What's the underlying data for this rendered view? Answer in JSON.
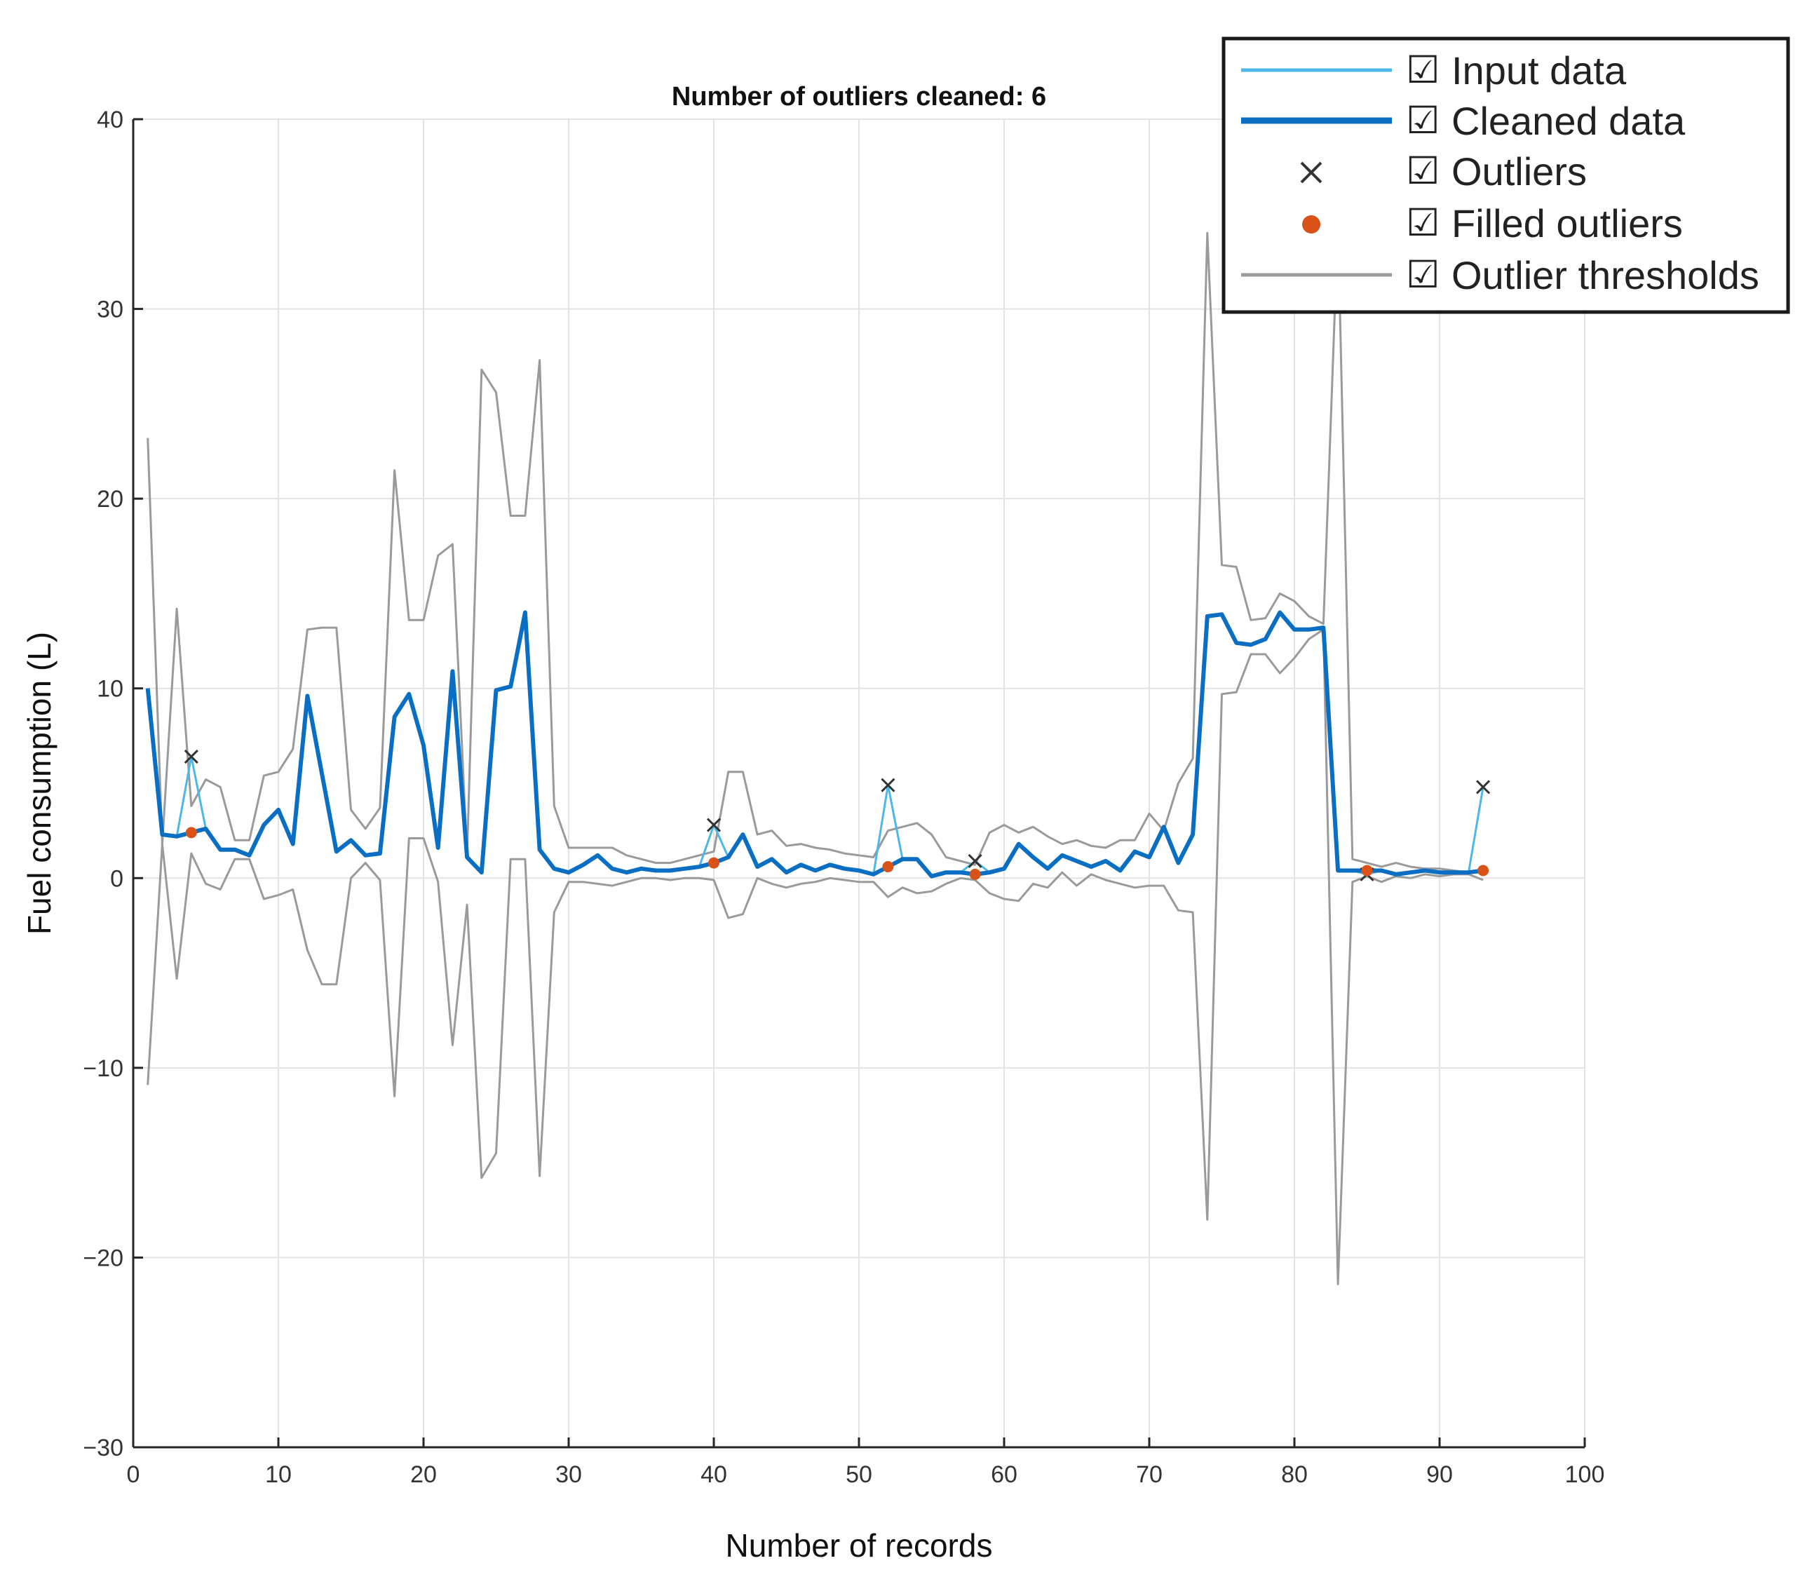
{
  "chart_data": {
    "type": "line",
    "title": "Number of outliers cleaned: 6",
    "xlabel": "Number  of records",
    "ylabel": "Fuel consumption (L)",
    "xlim": [
      0,
      100
    ],
    "ylim": [
      -30,
      40
    ],
    "xticks": [
      0,
      10,
      20,
      30,
      40,
      50,
      60,
      70,
      80,
      90,
      100
    ],
    "yticks": [
      40,
      30,
      20,
      10,
      0,
      -10,
      -20,
      -30
    ],
    "ytick_labels": [
      "40",
      "30",
      "20",
      "10",
      "0",
      "−10",
      "−20",
      "−30"
    ],
    "grid": true,
    "legend_position": "top-right",
    "colors": {
      "input": "#4db8e8",
      "cleaned": "#0a6fc2",
      "outlier": "#333333",
      "filled": "#d95319",
      "threshold": "#9a9a9a",
      "grid": "#e3e3e3"
    },
    "legend": [
      {
        "label": "Input data",
        "check": "☑",
        "marker": "thin-line"
      },
      {
        "label": "Cleaned data",
        "check": "☑",
        "marker": "thick-line"
      },
      {
        "label": "Outliers",
        "check": "☑",
        "marker": "x"
      },
      {
        "label": "Filled outliers",
        "check": "☑",
        "marker": "dot"
      },
      {
        "label": "Outlier thresholds",
        "check": "☑",
        "marker": "gray-line"
      }
    ],
    "x": [
      1,
      2,
      3,
      4,
      5,
      6,
      7,
      8,
      9,
      10,
      11,
      12,
      13,
      14,
      15,
      16,
      17,
      18,
      19,
      20,
      21,
      22,
      23,
      24,
      25,
      26,
      27,
      28,
      29,
      30,
      31,
      32,
      33,
      34,
      35,
      36,
      37,
      38,
      39,
      40,
      41,
      42,
      43,
      44,
      45,
      46,
      47,
      48,
      49,
      50,
      51,
      52,
      53,
      54,
      55,
      56,
      57,
      58,
      59,
      60,
      61,
      62,
      63,
      64,
      65,
      66,
      67,
      68,
      69,
      70,
      71,
      72,
      73,
      74,
      75,
      76,
      77,
      78,
      79,
      80,
      81,
      82,
      83,
      84,
      85,
      86,
      87,
      88,
      89,
      90,
      91,
      92,
      93
    ],
    "series": [
      {
        "name": "Cleaned data",
        "values": [
          10,
          2.3,
          2.2,
          2.4,
          2.6,
          1.5,
          1.5,
          1.2,
          2.8,
          3.6,
          1.8,
          9.6,
          5.5,
          1.4,
          2,
          1.2,
          1.3,
          8.5,
          9.7,
          7,
          1.6,
          10.9,
          1.1,
          0.3,
          9.9,
          10.1,
          14,
          1.5,
          0.5,
          0.3,
          0.7,
          1.2,
          0.5,
          0.3,
          0.5,
          0.4,
          0.4,
          0.5,
          0.6,
          0.8,
          1.1,
          2.3,
          0.6,
          1,
          0.3,
          0.7,
          0.4,
          0.7,
          0.5,
          0.4,
          0.2,
          0.6,
          1,
          1,
          0.1,
          0.3,
          0.3,
          0.2,
          0.3,
          0.5,
          1.8,
          1.1,
          0.5,
          1.2,
          0.9,
          0.6,
          0.9,
          0.4,
          1.4,
          1.1,
          2.7,
          0.8,
          2.3,
          13.8,
          13.9,
          12.4,
          12.3,
          12.6,
          14,
          13.1,
          13.1,
          13.2,
          0.4,
          0.4,
          0.4,
          0.4,
          0.2,
          0.3,
          0.4,
          0.3,
          0.3,
          0.3,
          0.4
        ]
      },
      {
        "name": "Input data",
        "values": [
          10,
          2.3,
          2.2,
          6.4,
          2.6,
          1.5,
          1.5,
          1.2,
          2.8,
          3.6,
          1.8,
          9.6,
          5.5,
          1.4,
          2,
          1.2,
          1.3,
          8.5,
          9.7,
          7,
          1.6,
          10.9,
          1.1,
          0.3,
          9.9,
          10.1,
          14,
          1.5,
          0.5,
          0.3,
          0.7,
          1.2,
          0.5,
          0.3,
          0.5,
          0.4,
          0.4,
          0.5,
          0.6,
          2.8,
          1.1,
          2.3,
          0.6,
          1,
          0.3,
          0.7,
          0.4,
          0.7,
          0.5,
          0.4,
          0.2,
          4.9,
          1,
          1,
          0.1,
          0.3,
          0.3,
          0.9,
          0.3,
          0.5,
          1.8,
          1.1,
          0.5,
          1.2,
          0.9,
          0.6,
          0.9,
          0.4,
          1.4,
          1.1,
          2.7,
          0.8,
          2.3,
          13.8,
          13.9,
          12.4,
          12.3,
          12.6,
          14,
          13.1,
          13.1,
          13.2,
          0.4,
          0.4,
          0.2,
          0.4,
          0.2,
          0.3,
          0.4,
          0.3,
          0.3,
          0.3,
          4.8
        ]
      },
      {
        "name": "Upper threshold",
        "values": [
          23.2,
          1.8,
          14.2,
          3.8,
          5.2,
          4.8,
          2,
          2,
          5.4,
          5.6,
          6.8,
          13.1,
          13.2,
          13.2,
          3.6,
          2.6,
          3.7,
          21.5,
          13.6,
          13.6,
          17,
          17.6,
          1.2,
          26.8,
          25.6,
          19.1,
          19.1,
          27.3,
          3.8,
          1.6,
          1.6,
          1.6,
          1.6,
          1.2,
          1,
          0.8,
          0.8,
          1,
          1.2,
          1.4,
          5.6,
          5.6,
          2.3,
          2.5,
          1.7,
          1.8,
          1.6,
          1.5,
          1.3,
          1.2,
          1.1,
          2.5,
          2.7,
          2.9,
          2.3,
          1.1,
          0.9,
          0.7,
          2.4,
          2.8,
          2.4,
          2.7,
          2.2,
          1.8,
          2,
          1.7,
          1.6,
          2,
          2,
          3.4,
          2.5,
          5,
          6.3,
          34,
          16.5,
          16.4,
          13.6,
          13.7,
          15,
          14.6,
          13.8,
          13.4,
          34.5,
          1,
          0.8,
          0.6,
          0.8,
          0.6,
          0.5,
          0.5,
          0.4,
          0.3,
          0.3
        ]
      },
      {
        "name": "Lower threshold",
        "values": [
          -10.9,
          1.8,
          -5.3,
          1.3,
          -0.3,
          -0.6,
          1,
          1,
          -1.1,
          -0.9,
          -0.6,
          -3.8,
          -5.6,
          -5.6,
          0,
          0.8,
          -0.1,
          -11.5,
          2.1,
          2.1,
          -0.2,
          -8.8,
          -1.4,
          -15.8,
          -14.5,
          1,
          1,
          -15.7,
          -1.8,
          -0.2,
          -0.2,
          -0.3,
          -0.4,
          -0.2,
          0,
          0,
          -0.1,
          0,
          0,
          -0.1,
          -2.1,
          -1.9,
          0,
          -0.3,
          -0.5,
          -0.3,
          -0.2,
          0,
          -0.1,
          -0.2,
          -0.2,
          -1,
          -0.5,
          -0.8,
          -0.7,
          -0.3,
          0,
          -0.1,
          -0.8,
          -1.1,
          -1.2,
          -0.3,
          -0.5,
          0.3,
          -0.4,
          0.2,
          -0.1,
          -0.3,
          -0.5,
          -0.4,
          -0.4,
          -1.7,
          -1.8,
          -18,
          9.7,
          9.8,
          11.8,
          11.8,
          10.8,
          11.6,
          12.6,
          13.1,
          -21.4,
          -0.2,
          0.1,
          -0.2,
          0.1,
          0,
          0.2,
          0.1,
          0.2,
          0.2,
          -0.1
        ]
      }
    ],
    "outliers": [
      {
        "x": 4,
        "y": 6.4
      },
      {
        "x": 40,
        "y": 2.8
      },
      {
        "x": 52,
        "y": 4.9
      },
      {
        "x": 58,
        "y": 0.9
      },
      {
        "x": 85,
        "y": 0.2
      },
      {
        "x": 93,
        "y": 4.8
      }
    ],
    "filled_outliers": [
      {
        "x": 4,
        "y": 2.4
      },
      {
        "x": 40,
        "y": 0.8
      },
      {
        "x": 52,
        "y": 0.6
      },
      {
        "x": 58,
        "y": 0.2
      },
      {
        "x": 85,
        "y": 0.4
      },
      {
        "x": 93,
        "y": 0.4
      }
    ]
  }
}
